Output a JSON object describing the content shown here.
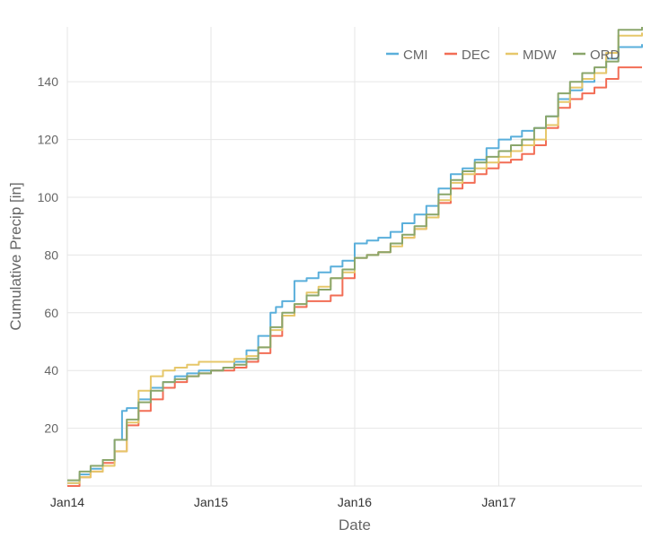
{
  "chart_data": {
    "type": "line",
    "xlabel": "Date",
    "ylabel": "Cumulative Precip [in]",
    "x_ticks": [
      "Jan14",
      "Jan15",
      "Jan16",
      "Jan17"
    ],
    "y_ticks": [
      20,
      40,
      60,
      80,
      100,
      120,
      140
    ],
    "xlim": [
      "2014-01-01",
      "2017-12-31"
    ],
    "ylim": [
      0,
      159
    ],
    "grid": true,
    "legend_position": "top-right",
    "series": [
      {
        "name": "CMI",
        "color": "#5aafdb",
        "x": [
          "2014-01-01",
          "2014-02-01",
          "2014-03-01",
          "2014-04-01",
          "2014-05-01",
          "2014-05-20",
          "2014-06-01",
          "2014-07-01",
          "2014-08-01",
          "2014-09-01",
          "2014-10-01",
          "2014-11-01",
          "2014-12-01",
          "2015-01-01",
          "2015-02-01",
          "2015-03-01",
          "2015-04-01",
          "2015-05-01",
          "2015-06-01",
          "2015-06-15",
          "2015-07-01",
          "2015-08-01",
          "2015-09-01",
          "2015-10-01",
          "2015-11-01",
          "2015-12-01",
          "2016-01-01",
          "2016-02-01",
          "2016-03-01",
          "2016-04-01",
          "2016-05-01",
          "2016-06-01",
          "2016-07-01",
          "2016-08-01",
          "2016-09-01",
          "2016-10-01",
          "2016-11-01",
          "2016-12-01",
          "2017-01-01",
          "2017-02-01",
          "2017-03-01",
          "2017-04-01",
          "2017-05-01",
          "2017-06-01",
          "2017-07-01",
          "2017-08-01",
          "2017-09-01",
          "2017-10-01",
          "2017-11-01",
          "2017-12-31"
        ],
        "values": [
          1,
          4,
          6,
          9,
          16,
          26,
          27,
          30,
          34,
          36,
          38,
          39,
          40,
          40,
          41,
          43,
          47,
          52,
          60,
          62,
          64,
          71,
          72,
          74,
          76,
          78,
          84,
          85,
          86,
          88,
          91,
          94,
          97,
          103,
          108,
          110,
          113,
          117,
          120,
          121,
          123,
          124,
          128,
          134,
          137,
          140,
          143,
          148,
          152,
          153
        ]
      },
      {
        "name": "DEC",
        "color": "#f26d55",
        "x": [
          "2014-01-01",
          "2014-02-01",
          "2014-03-01",
          "2014-04-01",
          "2014-05-01",
          "2014-06-01",
          "2014-07-01",
          "2014-08-01",
          "2014-09-01",
          "2014-10-01",
          "2014-11-01",
          "2014-12-01",
          "2015-01-01",
          "2015-02-01",
          "2015-03-01",
          "2015-04-01",
          "2015-05-01",
          "2015-06-01",
          "2015-07-01",
          "2015-08-01",
          "2015-09-01",
          "2015-10-01",
          "2015-11-01",
          "2015-12-01",
          "2016-01-01",
          "2016-02-01",
          "2016-03-01",
          "2016-04-01",
          "2016-05-01",
          "2016-06-01",
          "2016-07-01",
          "2016-08-01",
          "2016-09-01",
          "2016-10-01",
          "2016-11-01",
          "2016-12-01",
          "2017-01-01",
          "2017-02-01",
          "2017-03-01",
          "2017-04-01",
          "2017-05-01",
          "2017-06-01",
          "2017-07-01",
          "2017-08-01",
          "2017-09-01",
          "2017-10-01",
          "2017-11-01",
          "2017-12-31"
        ],
        "values": [
          0,
          3,
          5,
          8,
          12,
          21,
          26,
          30,
          34,
          36,
          38,
          39,
          40,
          40,
          41,
          43,
          46,
          52,
          59,
          62,
          64,
          64,
          66,
          72,
          79,
          80,
          81,
          84,
          86,
          89,
          93,
          98,
          103,
          105,
          108,
          110,
          112,
          113,
          115,
          118,
          124,
          131,
          134,
          136,
          138,
          141,
          145,
          145
        ]
      },
      {
        "name": "MDW",
        "color": "#e6c76a",
        "x": [
          "2014-01-01",
          "2014-02-01",
          "2014-03-01",
          "2014-04-01",
          "2014-05-01",
          "2014-06-01",
          "2014-07-01",
          "2014-08-01",
          "2014-09-01",
          "2014-10-01",
          "2014-11-01",
          "2014-12-01",
          "2015-01-01",
          "2015-02-01",
          "2015-03-01",
          "2015-04-01",
          "2015-05-01",
          "2015-06-01",
          "2015-07-01",
          "2015-08-01",
          "2015-09-01",
          "2015-10-01",
          "2015-11-01",
          "2015-12-01",
          "2016-01-01",
          "2016-02-01",
          "2016-03-01",
          "2016-04-01",
          "2016-05-01",
          "2016-06-01",
          "2016-07-01",
          "2016-08-01",
          "2016-09-01",
          "2016-10-01",
          "2016-11-01",
          "2016-12-01",
          "2017-01-01",
          "2017-02-01",
          "2017-03-01",
          "2017-04-01",
          "2017-05-01",
          "2017-06-01",
          "2017-07-01",
          "2017-08-01",
          "2017-09-01",
          "2017-10-01",
          "2017-11-01",
          "2017-12-31"
        ],
        "values": [
          1,
          3,
          5,
          7,
          12,
          22,
          33,
          38,
          40,
          41,
          42,
          43,
          43,
          43,
          44,
          45,
          48,
          54,
          59,
          63,
          67,
          69,
          72,
          74,
          79,
          80,
          81,
          83,
          86,
          89,
          93,
          99,
          105,
          108,
          110,
          112,
          114,
          116,
          118,
          120,
          125,
          133,
          138,
          141,
          143,
          150,
          156,
          157
        ]
      },
      {
        "name": "ORD",
        "color": "#8aa66b",
        "x": [
          "2014-01-01",
          "2014-02-01",
          "2014-03-01",
          "2014-04-01",
          "2014-05-01",
          "2014-06-01",
          "2014-07-01",
          "2014-08-01",
          "2014-09-01",
          "2014-10-01",
          "2014-11-01",
          "2014-12-01",
          "2015-01-01",
          "2015-02-01",
          "2015-03-01",
          "2015-04-01",
          "2015-05-01",
          "2015-06-01",
          "2015-07-01",
          "2015-08-01",
          "2015-09-01",
          "2015-10-01",
          "2015-11-01",
          "2015-12-01",
          "2016-01-01",
          "2016-02-01",
          "2016-03-01",
          "2016-04-01",
          "2016-05-01",
          "2016-06-01",
          "2016-07-01",
          "2016-08-01",
          "2016-09-01",
          "2016-10-01",
          "2016-11-01",
          "2016-12-01",
          "2017-01-01",
          "2017-02-01",
          "2017-03-01",
          "2017-04-01",
          "2017-05-01",
          "2017-06-01",
          "2017-07-01",
          "2017-08-01",
          "2017-09-01",
          "2017-10-01",
          "2017-11-01",
          "2017-12-31"
        ],
        "values": [
          2,
          5,
          7,
          9,
          16,
          23,
          29,
          33,
          36,
          37,
          38,
          39,
          40,
          41,
          42,
          44,
          48,
          55,
          60,
          63,
          66,
          68,
          72,
          75,
          79,
          80,
          81,
          84,
          87,
          90,
          94,
          101,
          106,
          109,
          112,
          114,
          116,
          118,
          120,
          124,
          128,
          136,
          140,
          143,
          145,
          147,
          158,
          159
        ]
      }
    ]
  }
}
